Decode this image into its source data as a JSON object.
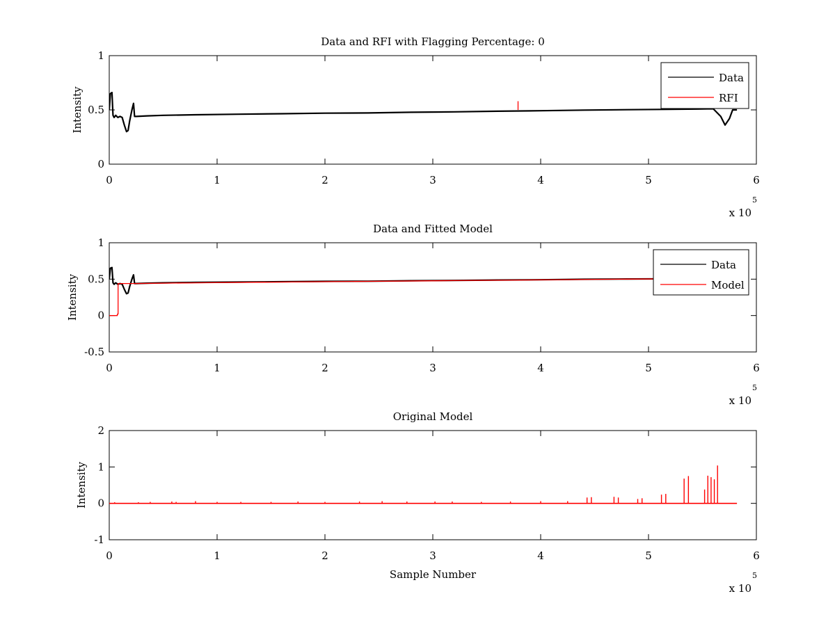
{
  "chart_data": [
    {
      "type": "line",
      "title": "Data and RFI with Flagging Percentage: 0",
      "xlabel": "",
      "ylabel": "Intensity",
      "xlim": [
        0,
        600000
      ],
      "ylim": [
        0,
        1
      ],
      "xticks": [
        0,
        1,
        2,
        3,
        4,
        5,
        6
      ],
      "yticks": [
        "0",
        "0.5",
        "1"
      ],
      "x_multiplier_base": "x 10",
      "x_multiplier_exp": "5",
      "grid": false,
      "legend_position": "top-right",
      "series": [
        {
          "name": "Data",
          "color": "#000000",
          "x": [
            0,
            1000,
            2500,
            3500,
            4500,
            6000,
            8000,
            10000,
            12000,
            14000,
            16000,
            17500,
            19000,
            21000,
            22500,
            23500,
            25000,
            35000,
            50000,
            80000,
            120000,
            160000,
            200000,
            240000,
            280000,
            320000,
            360000,
            400000,
            440000,
            480000,
            520000,
            545000,
            560000,
            567000,
            571000,
            575000,
            578000,
            582000
          ],
          "y": [
            0.5,
            0.65,
            0.66,
            0.45,
            0.43,
            0.45,
            0.43,
            0.44,
            0.43,
            0.36,
            0.3,
            0.31,
            0.4,
            0.5,
            0.56,
            0.44,
            0.44,
            0.445,
            0.45,
            0.455,
            0.46,
            0.465,
            0.47,
            0.472,
            0.478,
            0.482,
            0.488,
            0.492,
            0.498,
            0.502,
            0.505,
            0.508,
            0.51,
            0.44,
            0.36,
            0.42,
            0.5,
            0.5
          ]
        },
        {
          "name": "RFI",
          "color": "#ff0000",
          "x": [
            379000,
            379000
          ],
          "y": [
            0.5,
            0.58
          ]
        }
      ]
    },
    {
      "type": "line",
      "title": "Data and Fitted Model",
      "xlabel": "",
      "ylabel": "Intensity",
      "xlim": [
        0,
        600000
      ],
      "ylim": [
        -0.5,
        1
      ],
      "xticks": [
        0,
        1,
        2,
        3,
        4,
        5,
        6
      ],
      "yticks": [
        "-0.5",
        "0",
        "0.5",
        "1"
      ],
      "x_multiplier_base": "x 10",
      "x_multiplier_exp": "5",
      "grid": false,
      "legend_position": "top-right",
      "series": [
        {
          "name": "Data",
          "color": "#000000",
          "x": [
            0,
            1000,
            2500,
            3500,
            4500,
            6000,
            8000,
            10000,
            12000,
            14000,
            16000,
            17500,
            19000,
            21000,
            22500,
            23500,
            25000,
            35000,
            50000,
            80000,
            120000,
            160000,
            200000,
            240000,
            280000,
            320000,
            360000,
            400000,
            440000,
            480000,
            520000,
            545000,
            560000,
            567000,
            571000,
            575000,
            578000,
            582000
          ],
          "y": [
            0.5,
            0.65,
            0.66,
            0.45,
            0.43,
            0.45,
            0.43,
            0.44,
            0.43,
            0.36,
            0.3,
            0.31,
            0.4,
            0.5,
            0.56,
            0.44,
            0.44,
            0.445,
            0.45,
            0.455,
            0.46,
            0.465,
            0.47,
            0.472,
            0.478,
            0.482,
            0.488,
            0.492,
            0.498,
            0.502,
            0.505,
            0.508,
            0.51,
            0.44,
            0.36,
            0.42,
            0.5,
            0.5
          ]
        },
        {
          "name": "Model",
          "color": "#ff0000",
          "x": [
            0,
            7500,
            7500,
            8200,
            8200,
            25000,
            80000,
            160000,
            240000,
            320000,
            400000,
            480000,
            560000,
            582000
          ],
          "y": [
            0.0,
            0.0,
            0.02,
            0.02,
            0.44,
            0.44,
            0.45,
            0.46,
            0.47,
            0.48,
            0.49,
            0.5,
            0.51,
            0.51
          ]
        }
      ]
    },
    {
      "type": "line",
      "title": "Original Model",
      "xlabel": "Sample Number",
      "ylabel": "Intensity",
      "xlim": [
        0,
        600000
      ],
      "ylim": [
        -1,
        2
      ],
      "xticks": [
        0,
        1,
        2,
        3,
        4,
        5,
        6
      ],
      "yticks": [
        "-1",
        "0",
        "1",
        "2"
      ],
      "x_multiplier_base": "x 10",
      "x_multiplier_exp": "5",
      "grid": false,
      "legend_position": "none",
      "series": [
        {
          "color": "#ff0000",
          "baseline": [
            0,
            582000
          ],
          "spikes_x": [
            5000,
            27000,
            38000,
            58000,
            62000,
            80000,
            100000,
            122000,
            150000,
            175000,
            200000,
            232000,
            253000,
            276000,
            302000,
            318000,
            345000,
            372000,
            400000,
            425000,
            443000,
            447000,
            468000,
            472000,
            490000,
            494000,
            512000,
            516000,
            533000,
            537000,
            552000,
            555000,
            558000,
            561000,
            564000
          ],
          "spikes_y": [
            0.03,
            0.03,
            0.04,
            0.05,
            0.04,
            0.06,
            0.04,
            0.04,
            0.04,
            0.05,
            0.04,
            0.05,
            0.06,
            0.05,
            0.05,
            0.05,
            0.04,
            0.05,
            0.06,
            0.06,
            0.16,
            0.17,
            0.18,
            0.16,
            0.12,
            0.14,
            0.24,
            0.26,
            0.68,
            0.75,
            0.38,
            0.76,
            0.72,
            0.66,
            1.04
          ]
        }
      ]
    }
  ]
}
